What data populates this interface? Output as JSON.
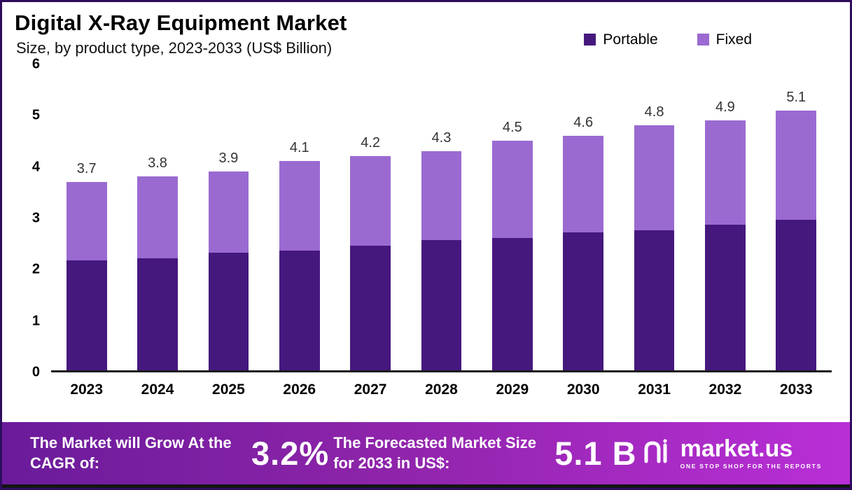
{
  "header": {
    "title": "Digital X-Ray Equipment Market",
    "subtitle": "Size, by product type, 2023-2033 (US$ Billion)"
  },
  "legend": [
    {
      "label": "Portable",
      "color": "#45187e"
    },
    {
      "label": "Fixed",
      "color": "#9a6ad1"
    }
  ],
  "chart_data": {
    "type": "bar",
    "stacked": true,
    "title": "Digital X-Ray Equipment Market Size, by product type, 2023-2033 (US$ Billion)",
    "categories": [
      "2023",
      "2024",
      "2025",
      "2026",
      "2027",
      "2028",
      "2029",
      "2030",
      "2031",
      "2032",
      "2033"
    ],
    "series": [
      {
        "name": "Portable",
        "color": "#45187e",
        "values": [
          2.15,
          2.2,
          2.3,
          2.35,
          2.45,
          2.55,
          2.6,
          2.7,
          2.75,
          2.85,
          2.95
        ]
      },
      {
        "name": "Fixed",
        "color": "#9a6ad1",
        "values": [
          1.55,
          1.6,
          1.6,
          1.75,
          1.75,
          1.75,
          1.9,
          1.9,
          2.05,
          2.05,
          2.15
        ]
      }
    ],
    "totals": [
      3.7,
      3.8,
      3.9,
      4.1,
      4.2,
      4.3,
      4.5,
      4.6,
      4.8,
      4.9,
      5.1
    ],
    "ylim": [
      0,
      6
    ],
    "yticks": [
      0,
      1,
      2,
      3,
      4,
      5,
      6
    ],
    "grid": false,
    "legend_position": "top-right",
    "xlabel": "",
    "ylabel": ""
  },
  "footer": {
    "cagr_label": "The Market will Grow At the CAGR of:",
    "cagr_value": "3.2%",
    "forecast_label": "The Forecasted Market Size for 2033 in US$:",
    "forecast_value": "5.1 B",
    "brand": "market.us",
    "brand_tagline": "ONE STOP SHOP FOR THE REPORTS"
  }
}
